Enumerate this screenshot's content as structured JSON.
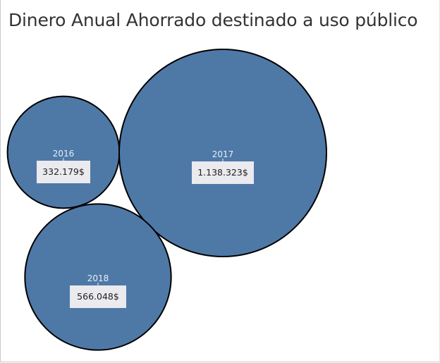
{
  "title": "Dinero Anual Ahorrado destinado a uso público",
  "colors": {
    "bubble": "#4e79a7",
    "bubble_stroke": "#000000",
    "label_box": "#eaeaef",
    "year_text": "#e8eef5"
  },
  "chart_data": {
    "type": "bubble",
    "title": "Dinero Anual Ahorrado destinado a uso público",
    "categories": [
      "2016",
      "2017",
      "2018"
    ],
    "values": [
      332179,
      1138323,
      566048
    ],
    "value_labels": [
      "332.179$",
      "1.138.323$",
      "566.048$"
    ]
  }
}
